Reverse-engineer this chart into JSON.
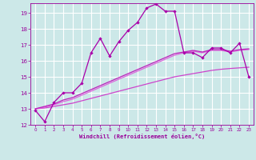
{
  "xlabel": "Windchill (Refroidissement éolien,°C)",
  "bg_color": "#cce8e8",
  "grid_color": "#ffffff",
  "line_color1": "#aa00aa",
  "line_color2": "#cc44cc",
  "line_color3": "#dd66dd",
  "line_color4": "#bb22bb",
  "xlim": [
    -0.5,
    23.5
  ],
  "ylim": [
    12,
    19.6
  ],
  "yticks": [
    12,
    13,
    14,
    15,
    16,
    17,
    18,
    19
  ],
  "xticks": [
    0,
    1,
    2,
    3,
    4,
    5,
    6,
    7,
    8,
    9,
    10,
    11,
    12,
    13,
    14,
    15,
    16,
    17,
    18,
    19,
    20,
    21,
    22,
    23
  ],
  "series1_x": [
    0,
    1,
    2,
    3,
    4,
    5,
    6,
    7,
    8,
    9,
    10,
    11,
    12,
    13,
    14,
    15,
    16,
    17,
    18,
    19,
    20,
    21,
    22,
    23
  ],
  "series1_y": [
    12.9,
    12.2,
    13.4,
    14.0,
    14.0,
    14.6,
    16.5,
    17.4,
    16.3,
    17.2,
    17.9,
    18.4,
    19.3,
    19.55,
    19.1,
    19.1,
    16.5,
    16.5,
    16.2,
    16.8,
    16.8,
    16.5,
    17.1,
    15.0
  ],
  "series2_x": [
    0,
    1,
    2,
    3,
    4,
    5,
    6,
    7,
    8,
    9,
    10,
    11,
    12,
    13,
    14,
    15,
    16,
    17,
    18,
    19,
    20,
    21,
    22,
    23
  ],
  "series2_y": [
    13.0,
    13.05,
    13.15,
    13.25,
    13.35,
    13.5,
    13.65,
    13.8,
    13.95,
    14.1,
    14.25,
    14.4,
    14.55,
    14.7,
    14.85,
    15.0,
    15.1,
    15.2,
    15.3,
    15.4,
    15.47,
    15.52,
    15.56,
    15.6
  ],
  "series3_x": [
    0,
    1,
    2,
    3,
    4,
    5,
    6,
    7,
    8,
    9,
    10,
    11,
    12,
    13,
    14,
    15,
    16,
    17,
    18,
    19,
    20,
    21,
    22,
    23
  ],
  "series3_y": [
    13.0,
    13.1,
    13.25,
    13.45,
    13.6,
    13.85,
    14.1,
    14.35,
    14.6,
    14.85,
    15.1,
    15.35,
    15.6,
    15.85,
    16.1,
    16.35,
    16.5,
    16.6,
    16.5,
    16.65,
    16.65,
    16.55,
    16.65,
    16.7
  ],
  "series4_x": [
    0,
    1,
    2,
    3,
    4,
    5,
    6,
    7,
    8,
    9,
    10,
    11,
    12,
    13,
    14,
    15,
    16,
    17,
    18,
    19,
    20,
    21,
    22,
    23
  ],
  "series4_y": [
    13.0,
    13.15,
    13.3,
    13.55,
    13.7,
    13.95,
    14.2,
    14.45,
    14.7,
    14.95,
    15.2,
    15.45,
    15.7,
    15.95,
    16.2,
    16.45,
    16.55,
    16.65,
    16.55,
    16.7,
    16.7,
    16.6,
    16.7,
    16.75
  ]
}
